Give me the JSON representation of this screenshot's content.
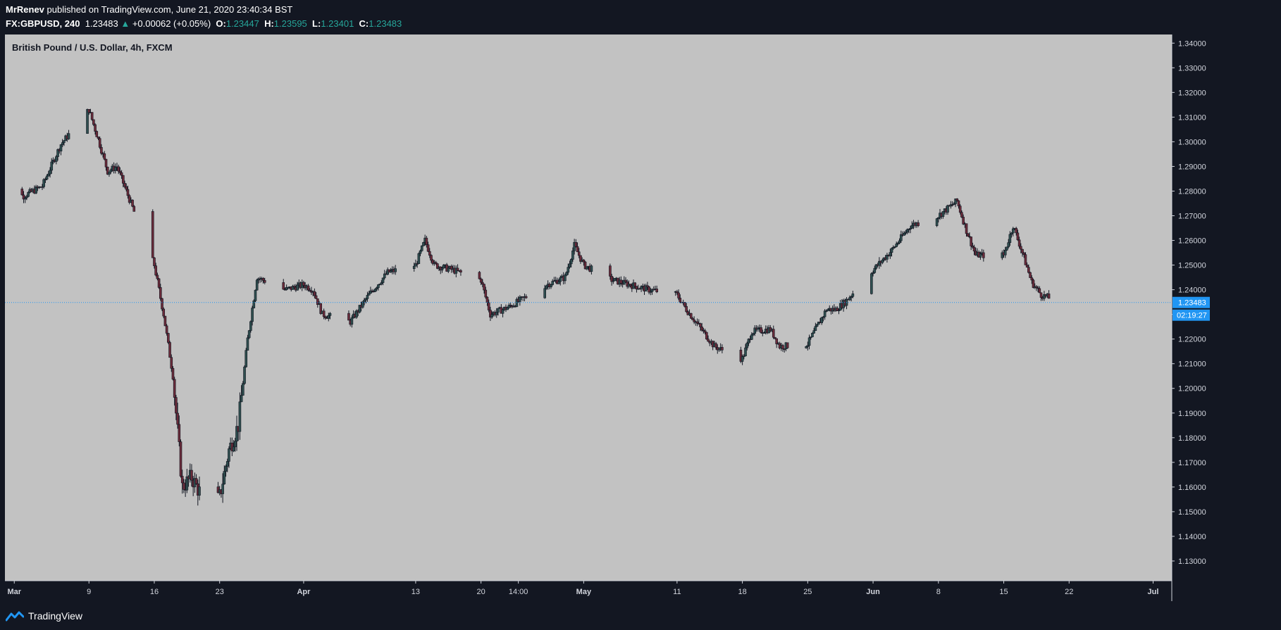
{
  "header": {
    "author": "MrRenev",
    "published_text": " published on TradingView.com, June 21, 2020 23:40:34 BST"
  },
  "legend": {
    "symbol": "FX:GBPUSD, 240",
    "last": "1.23483",
    "change": "+0.00062 (+0.05%)",
    "o_label": "O:",
    "o": "1.23447",
    "h_label": "H:",
    "h": "1.23595",
    "l_label": "L:",
    "l": "1.23401",
    "c_label": "C:",
    "c": "1.23483"
  },
  "pane": {
    "title": "British Pound / U.S. Dollar, 4h, FXCM"
  },
  "price_badge": {
    "value": "1.23483",
    "countdown": "02:19:27"
  },
  "footer": {
    "brand": "TradingView"
  },
  "colors": {
    "background": "#131722",
    "plot": "#c2c2c2",
    "candle_up": "#2f4f4f",
    "candle_down": "#6b2b3a",
    "wick": "#131722",
    "price_line": "#2196f3",
    "badge": "#2196f3"
  },
  "chart_data": {
    "type": "candlestick",
    "title": "British Pound / U.S. Dollar, 4h, FXCM",
    "y_ticks": [
      "1.34000",
      "1.33000",
      "1.32000",
      "1.31000",
      "1.30000",
      "1.29000",
      "1.28000",
      "1.27000",
      "1.26000",
      "1.25000",
      "1.24000",
      "1.23000",
      "1.22000",
      "1.21000",
      "1.20000",
      "1.19000",
      "1.18000",
      "1.17000",
      "1.16000",
      "1.15000",
      "1.14000",
      "1.13000"
    ],
    "ylim": [
      1.122,
      1.3435
    ],
    "x_ticks": [
      {
        "label": "Mar",
        "date": "2020-03-01",
        "bold": true
      },
      {
        "label": "9",
        "date": "2020-03-09"
      },
      {
        "label": "16",
        "date": "2020-03-16"
      },
      {
        "label": "23",
        "date": "2020-03-23"
      },
      {
        "label": "Apr",
        "date": "2020-04-01",
        "bold": true
      },
      {
        "label": "13",
        "date": "2020-04-13"
      },
      {
        "label": "20",
        "date": "2020-04-20"
      },
      {
        "label": "14:00",
        "date": "2020-04-24"
      },
      {
        "label": "May",
        "date": "2020-05-01",
        "bold": true
      },
      {
        "label": "11",
        "date": "2020-05-11"
      },
      {
        "label": "18",
        "date": "2020-05-18"
      },
      {
        "label": "25",
        "date": "2020-05-25"
      },
      {
        "label": "Jun",
        "date": "2020-06-01",
        "bold": true
      },
      {
        "label": "8",
        "date": "2020-06-08"
      },
      {
        "label": "15",
        "date": "2020-06-15"
      },
      {
        "label": "22",
        "date": "2020-06-22"
      },
      {
        "label": "Jul",
        "date": "2020-07-01",
        "bold": true
      }
    ],
    "xlim": [
      "2020-02-29",
      "2020-07-03"
    ],
    "last_price": 1.23483,
    "closes": [
      {
        "date": "2020-02-28",
        "close": 1.283
      },
      {
        "date": "2020-03-02",
        "close": 1.278
      },
      {
        "date": "2020-03-04",
        "close": 1.282
      },
      {
        "date": "2020-03-06",
        "close": 1.299
      },
      {
        "date": "2020-03-09",
        "close": 1.313
      },
      {
        "date": "2020-03-10",
        "close": 1.301
      },
      {
        "date": "2020-03-11",
        "close": 1.288
      },
      {
        "date": "2020-03-12",
        "close": 1.29
      },
      {
        "date": "2020-03-13",
        "close": 1.28
      },
      {
        "date": "2020-03-16",
        "close": 1.25
      },
      {
        "date": "2020-03-17",
        "close": 1.23
      },
      {
        "date": "2020-03-18",
        "close": 1.205
      },
      {
        "date": "2020-03-19",
        "close": 1.16
      },
      {
        "date": "2020-03-20",
        "close": 1.164
      },
      {
        "date": "2020-03-22",
        "close": 1.15
      },
      {
        "date": "2020-03-23",
        "close": 1.156
      },
      {
        "date": "2020-03-24",
        "close": 1.175
      },
      {
        "date": "2020-03-25",
        "close": 1.185
      },
      {
        "date": "2020-03-26",
        "close": 1.22
      },
      {
        "date": "2020-03-27",
        "close": 1.245
      },
      {
        "date": "2020-03-30",
        "close": 1.24
      },
      {
        "date": "2020-04-01",
        "close": 1.242
      },
      {
        "date": "2020-04-02",
        "close": 1.24
      },
      {
        "date": "2020-04-03",
        "close": 1.23
      },
      {
        "date": "2020-04-06",
        "close": 1.227
      },
      {
        "date": "2020-04-08",
        "close": 1.238
      },
      {
        "date": "2020-04-10",
        "close": 1.247
      },
      {
        "date": "2020-04-13",
        "close": 1.25
      },
      {
        "date": "2020-04-14",
        "close": 1.26
      },
      {
        "date": "2020-04-15",
        "close": 1.25
      },
      {
        "date": "2020-04-17",
        "close": 1.248
      },
      {
        "date": "2020-04-20",
        "close": 1.244
      },
      {
        "date": "2020-04-21",
        "close": 1.23
      },
      {
        "date": "2020-04-23",
        "close": 1.233
      },
      {
        "date": "2020-04-27",
        "close": 1.242
      },
      {
        "date": "2020-04-29",
        "close": 1.245
      },
      {
        "date": "2020-04-30",
        "close": 1.258
      },
      {
        "date": "2020-05-01",
        "close": 1.25
      },
      {
        "date": "2020-05-04",
        "close": 1.244
      },
      {
        "date": "2020-05-06",
        "close": 1.242
      },
      {
        "date": "2020-05-08",
        "close": 1.24
      },
      {
        "date": "2020-05-11",
        "close": 1.238
      },
      {
        "date": "2020-05-12",
        "close": 1.232
      },
      {
        "date": "2020-05-14",
        "close": 1.222
      },
      {
        "date": "2020-05-15",
        "close": 1.217
      },
      {
        "date": "2020-05-18",
        "close": 1.212
      },
      {
        "date": "2020-05-19",
        "close": 1.223
      },
      {
        "date": "2020-05-21",
        "close": 1.224
      },
      {
        "date": "2020-05-22",
        "close": 1.217
      },
      {
        "date": "2020-05-25",
        "close": 1.218
      },
      {
        "date": "2020-05-27",
        "close": 1.232
      },
      {
        "date": "2020-05-28",
        "close": 1.232
      },
      {
        "date": "2020-05-29",
        "close": 1.235
      },
      {
        "date": "2020-06-01",
        "close": 1.248
      },
      {
        "date": "2020-06-03",
        "close": 1.256
      },
      {
        "date": "2020-06-05",
        "close": 1.266
      },
      {
        "date": "2020-06-08",
        "close": 1.27
      },
      {
        "date": "2020-06-10",
        "close": 1.276
      },
      {
        "date": "2020-06-11",
        "close": 1.264
      },
      {
        "date": "2020-06-12",
        "close": 1.254
      },
      {
        "date": "2020-06-15",
        "close": 1.254
      },
      {
        "date": "2020-06-16",
        "close": 1.266
      },
      {
        "date": "2020-06-17",
        "close": 1.255
      },
      {
        "date": "2020-06-18",
        "close": 1.243
      },
      {
        "date": "2020-06-19",
        "close": 1.238
      },
      {
        "date": "2020-06-21",
        "close": 1.23483
      }
    ]
  }
}
